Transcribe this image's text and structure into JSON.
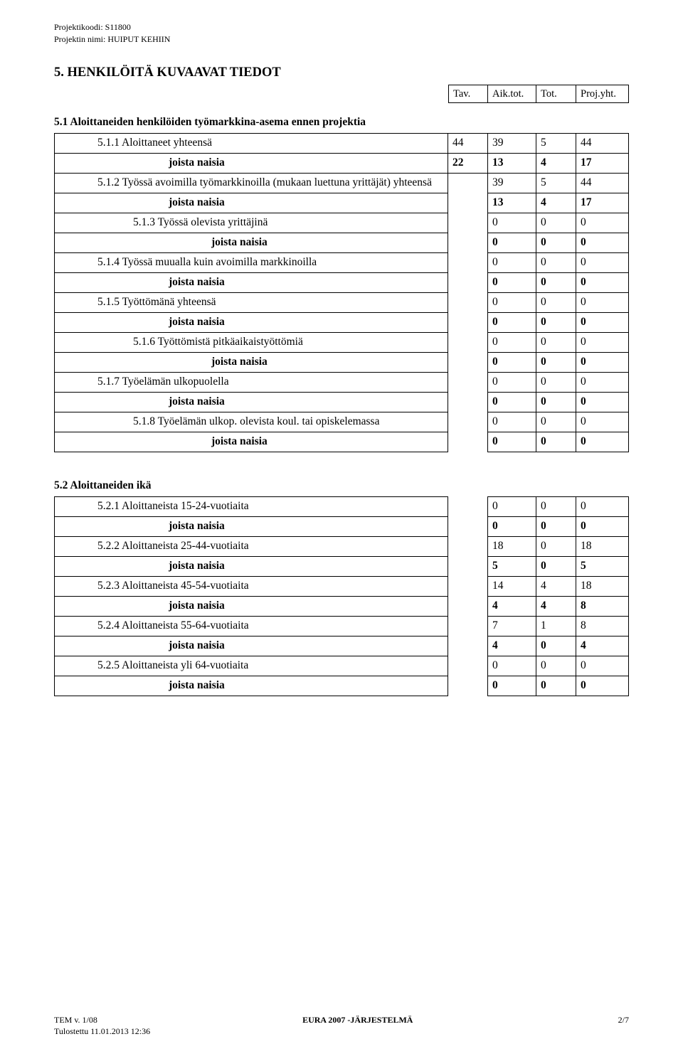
{
  "meta": {
    "proj_code_label": "Projektikoodi: S11800",
    "proj_name_label": "Projektin nimi: HUIPUT KEHIIN"
  },
  "section5_title": "5. HENKILÖITÄ KUVAAVAT TIEDOT",
  "colheads": {
    "c1": "Tav.",
    "c2": "Aik.tot.",
    "c3": "Tot.",
    "c4": "Proj.yht."
  },
  "colwidths": {
    "c1": 56,
    "c2": 68,
    "c3": 56,
    "c4": 74
  },
  "sub51": "5.1 Aloittaneiden henkilöiden työmarkkina-asema ennen projektia",
  "rows51": [
    {
      "label": "5.1.1 Aloittaneet yhteensä",
      "indent": 1,
      "bold": false,
      "vals": [
        "44",
        "39",
        "5",
        "44"
      ]
    },
    {
      "label": "joista naisia",
      "indent": 3,
      "bold": true,
      "vals": [
        "22",
        "13",
        "4",
        "17"
      ]
    },
    {
      "label": "5.1.2 Työssä avoimilla työmarkkinoilla (mukaan luettuna yrittäjät) yhteensä",
      "indent": 1,
      "bold": false,
      "vals": [
        "",
        "39",
        "5",
        "44"
      ]
    },
    {
      "label": "joista naisia",
      "indent": 3,
      "bold": true,
      "vals": [
        "",
        "13",
        "4",
        "17"
      ]
    },
    {
      "label": "5.1.3 Työssä olevista yrittäjinä",
      "indent": 2,
      "bold": false,
      "vals": [
        "",
        "0",
        "0",
        "0"
      ]
    },
    {
      "label": "joista naisia",
      "indent": 4,
      "bold": true,
      "vals": [
        "",
        "0",
        "0",
        "0"
      ]
    },
    {
      "label": "5.1.4 Työssä muualla kuin avoimilla markkinoilla",
      "indent": 1,
      "bold": false,
      "vals": [
        "",
        "0",
        "0",
        "0"
      ]
    },
    {
      "label": "joista naisia",
      "indent": 3,
      "bold": true,
      "vals": [
        "",
        "0",
        "0",
        "0"
      ]
    },
    {
      "label": "5.1.5 Työttömänä yhteensä",
      "indent": 1,
      "bold": false,
      "vals": [
        "",
        "0",
        "0",
        "0"
      ]
    },
    {
      "label": "joista naisia",
      "indent": 3,
      "bold": true,
      "vals": [
        "",
        "0",
        "0",
        "0"
      ]
    },
    {
      "label": "5.1.6 Työttömistä pitkäaikaistyöttömiä",
      "indent": 2,
      "bold": false,
      "vals": [
        "",
        "0",
        "0",
        "0"
      ]
    },
    {
      "label": "joista naisia",
      "indent": 4,
      "bold": true,
      "vals": [
        "",
        "0",
        "0",
        "0"
      ]
    },
    {
      "label": "5.1.7 Työelämän ulkopuolella",
      "indent": 1,
      "bold": false,
      "vals": [
        "",
        "0",
        "0",
        "0"
      ]
    },
    {
      "label": "joista naisia",
      "indent": 3,
      "bold": true,
      "vals": [
        "",
        "0",
        "0",
        "0"
      ]
    },
    {
      "label": "5.1.8 Työelämän ulkop. olevista koul. tai opiskelemassa",
      "indent": 2,
      "bold": false,
      "vals": [
        "",
        "0",
        "0",
        "0"
      ]
    },
    {
      "label": "joista naisia",
      "indent": 4,
      "bold": true,
      "vals": [
        "",
        "0",
        "0",
        "0"
      ]
    }
  ],
  "sub52": "5.2 Aloittaneiden ikä",
  "rows52": [
    {
      "label": "5.2.1 Aloittaneista 15-24-vuotiaita",
      "indent": 1,
      "bold": false,
      "vals": [
        "",
        "0",
        "0",
        "0"
      ]
    },
    {
      "label": "joista naisia",
      "indent": 3,
      "bold": true,
      "vals": [
        "",
        "0",
        "0",
        "0"
      ]
    },
    {
      "label": "5.2.2 Aloittaneista 25-44-vuotiaita",
      "indent": 1,
      "bold": false,
      "vals": [
        "",
        "18",
        "0",
        "18"
      ]
    },
    {
      "label": "joista naisia",
      "indent": 3,
      "bold": true,
      "vals": [
        "",
        "5",
        "0",
        "5"
      ]
    },
    {
      "label": "5.2.3 Aloittaneista 45-54-vuotiaita",
      "indent": 1,
      "bold": false,
      "vals": [
        "",
        "14",
        "4",
        "18"
      ]
    },
    {
      "label": "joista naisia",
      "indent": 3,
      "bold": true,
      "vals": [
        "",
        "4",
        "4",
        "8"
      ]
    },
    {
      "label": "5.2.4 Aloittaneista 55-64-vuotiaita",
      "indent": 1,
      "bold": false,
      "vals": [
        "",
        "7",
        "1",
        "8"
      ]
    },
    {
      "label": "joista naisia",
      "indent": 3,
      "bold": true,
      "vals": [
        "",
        "4",
        "0",
        "4"
      ]
    },
    {
      "label": "5.2.5 Aloittaneista yli 64-vuotiaita",
      "indent": 1,
      "bold": false,
      "vals": [
        "",
        "0",
        "0",
        "0"
      ]
    },
    {
      "label": "joista naisia",
      "indent": 3,
      "bold": true,
      "vals": [
        "",
        "0",
        "0",
        "0"
      ]
    }
  ],
  "footer": {
    "left": "TEM v. 1/08",
    "mid": "EURA 2007 -JÄRJESTELMÄ",
    "right": "2/7",
    "printed": "Tulostettu 11.01.2013 12:36"
  }
}
